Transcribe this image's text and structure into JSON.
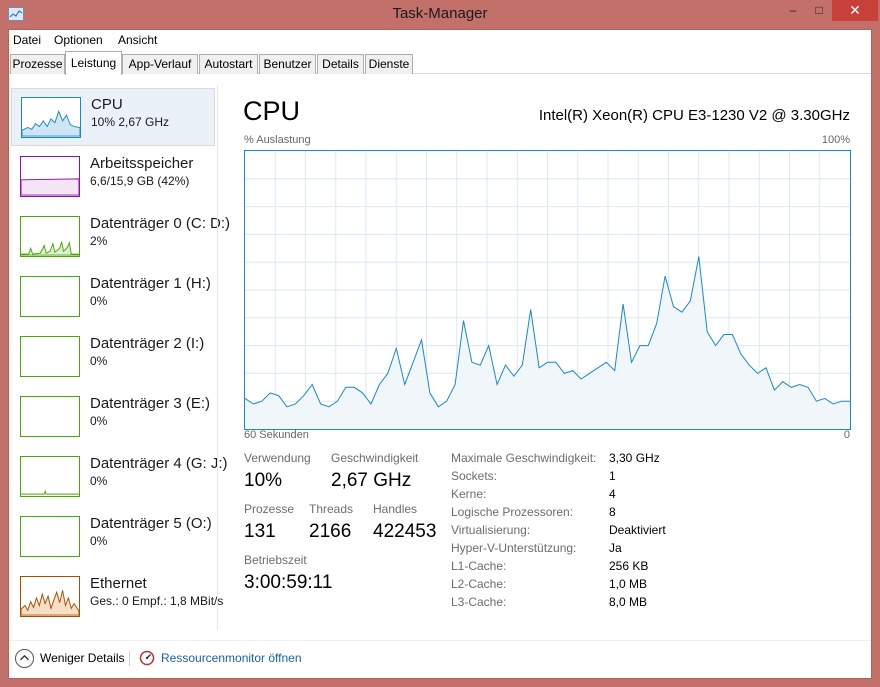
{
  "window": {
    "title": "Task-Manager",
    "controls": {
      "minimize": "‒",
      "maximize": "□",
      "close": "✕"
    }
  },
  "menu": [
    "Datei",
    "Optionen",
    "Ansicht"
  ],
  "tabs": [
    {
      "label": "Prozesse",
      "active": false
    },
    {
      "label": "Leistung",
      "active": true
    },
    {
      "label": "App-Verlauf",
      "active": false
    },
    {
      "label": "Autostart",
      "active": false
    },
    {
      "label": "Benutzer",
      "active": false
    },
    {
      "label": "Details",
      "active": false
    },
    {
      "label": "Dienste",
      "active": false
    }
  ],
  "sidebar": [
    {
      "name": "CPU",
      "sub": "10% 2,67 GHz",
      "color": "#1d88c7",
      "icon": "cpu-graph-icon"
    },
    {
      "name": "Arbeitsspeicher",
      "sub": "6,6/15,9 GB (42%)",
      "color": "#8b13a8",
      "icon": "memory-graph-icon"
    },
    {
      "name": "Datenträger 0 (C: D:)",
      "sub": "2%",
      "color": "#4da60c",
      "icon": "disk-graph-icon"
    },
    {
      "name": "Datenträger 1 (H:)",
      "sub": "0%",
      "color": "#4da60c",
      "icon": "disk-graph-icon"
    },
    {
      "name": "Datenträger 2 (I:)",
      "sub": "0%",
      "color": "#4da60c",
      "icon": "disk-graph-icon"
    },
    {
      "name": "Datenträger 3 (E:)",
      "sub": "0%",
      "color": "#4da60c",
      "icon": "disk-graph-icon"
    },
    {
      "name": "Datenträger 4 (G: J:)",
      "sub": "0%",
      "color": "#4da60c",
      "icon": "disk-graph-icon"
    },
    {
      "name": "Datenträger 5 (O:)",
      "sub": "0%",
      "color": "#4da60c",
      "icon": "disk-graph-icon"
    },
    {
      "name": "Ethernet",
      "sub": "Ges.: 0 Empf.: 1,8 MBit/s",
      "color": "#a74f01",
      "icon": "network-graph-icon"
    }
  ],
  "main": {
    "title": "CPU",
    "model": "Intel(R) Xeon(R) CPU E3-1230 V2 @ 3.30GHz",
    "y_axis_label": "% Auslastung",
    "y_max_label": "100%",
    "x_axis_label": "60 Sekunden",
    "x_min_label": "0"
  },
  "stats": {
    "usage": {
      "label": "Verwendung",
      "value": "10%"
    },
    "speed": {
      "label": "Geschwindigkeit",
      "value": "2,67 GHz"
    },
    "processes": {
      "label": "Prozesse",
      "value": "131"
    },
    "threads": {
      "label": "Threads",
      "value": "2166"
    },
    "handles": {
      "label": "Handles",
      "value": "422453"
    },
    "uptime": {
      "label": "Betriebszeit",
      "value": "3:00:59:11"
    }
  },
  "specs": [
    {
      "key": "Maximale Geschwindigkeit:",
      "value": "3,30 GHz"
    },
    {
      "key": "Sockets:",
      "value": "1"
    },
    {
      "key": "Kerne:",
      "value": "4"
    },
    {
      "key": "Logische Prozessoren:",
      "value": "8"
    },
    {
      "key": "Virtualisierung:",
      "value": "Deaktiviert"
    },
    {
      "key": "Hyper-V-Unterstützung:",
      "value": "Ja"
    },
    {
      "key": "L1-Cache:",
      "value": "256 KB"
    },
    {
      "key": "L2-Cache:",
      "value": "1,0 MB"
    },
    {
      "key": "L3-Cache:",
      "value": "8,0 MB"
    }
  ],
  "footer": {
    "less_details": "Weniger Details",
    "resource_monitor": "Ressourcenmonitor öffnen"
  },
  "chart_data": {
    "type": "area",
    "color": "#1d88c7",
    "fill": "#f1f6fa",
    "grid": true,
    "ylim": [
      0,
      100
    ],
    "xlim": [
      60,
      0
    ],
    "values": [
      11,
      9,
      10,
      13,
      12,
      8,
      9,
      12,
      16,
      9,
      8,
      10,
      15,
      15,
      13,
      9,
      16,
      20,
      29,
      16,
      24,
      32,
      13,
      8,
      10,
      16,
      39,
      24,
      23,
      30,
      16,
      23,
      19,
      23,
      43,
      22,
      24,
      24,
      20,
      21,
      18,
      20,
      22,
      24,
      21,
      45,
      24,
      30,
      30,
      38,
      55,
      44,
      42,
      46,
      62,
      35,
      30,
      34,
      34,
      27,
      23,
      20,
      22,
      14,
      17,
      15,
      16,
      15,
      10,
      11,
      9,
      10,
      10
    ]
  }
}
